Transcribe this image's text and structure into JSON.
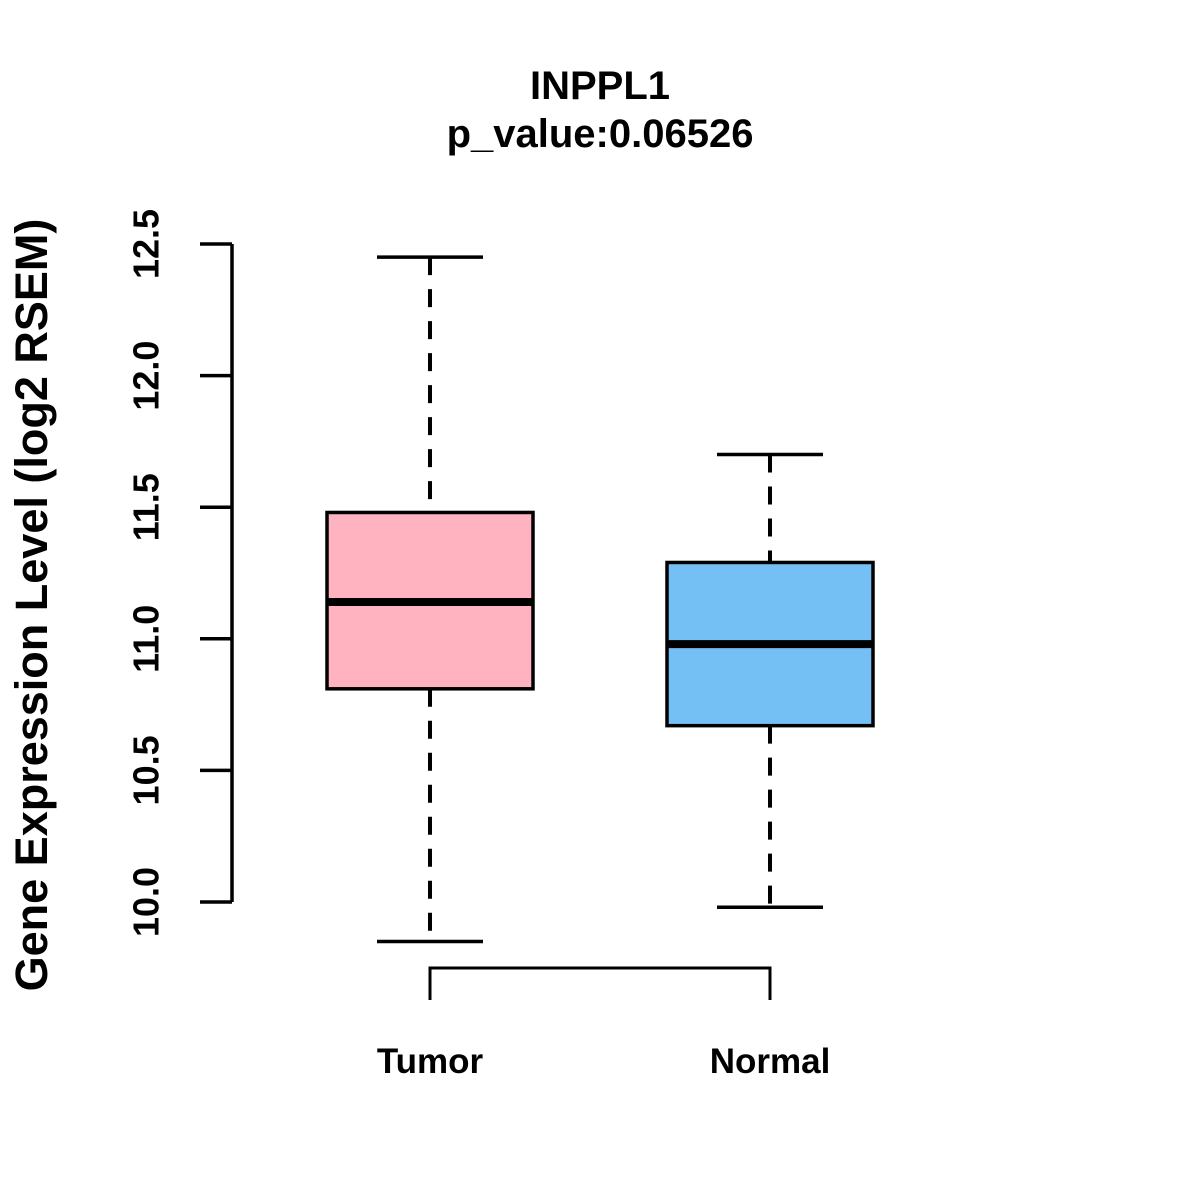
{
  "chart_data": {
    "type": "boxplot",
    "title": "INPPL1",
    "subtitle": "p_value:0.06526",
    "p_value": "0.06526",
    "ylabel": "Gene Expression Level (log2 RSEM)",
    "xlabel": "",
    "ylim": [
      9.7,
      12.6
    ],
    "ytick_values": [
      10.0,
      10.5,
      11.0,
      11.5,
      12.0,
      12.5
    ],
    "ytick_labels": [
      "10.0",
      "10.5",
      "11.0",
      "11.5",
      "12.0",
      "12.5"
    ],
    "grid": false,
    "legend": "none",
    "categories": [
      "Tumor",
      "Normal"
    ],
    "series": [
      {
        "name": "Tumor",
        "fill_color": "#FFB3C1",
        "lower_whisker": 9.85,
        "q1": 10.81,
        "median": 11.14,
        "q3": 11.48,
        "upper_whisker": 12.45
      },
      {
        "name": "Normal",
        "fill_color": "#74C0F5",
        "lower_whisker": 9.98,
        "q1": 10.67,
        "median": 10.98,
        "q3": 11.29,
        "upper_whisker": 11.7
      }
    ],
    "colors": {
      "box_border": "#000000",
      "median_line": "#000000",
      "whisker": "#000000",
      "axis": "#000000",
      "text": "#000000",
      "background": "#FFFFFF"
    }
  }
}
